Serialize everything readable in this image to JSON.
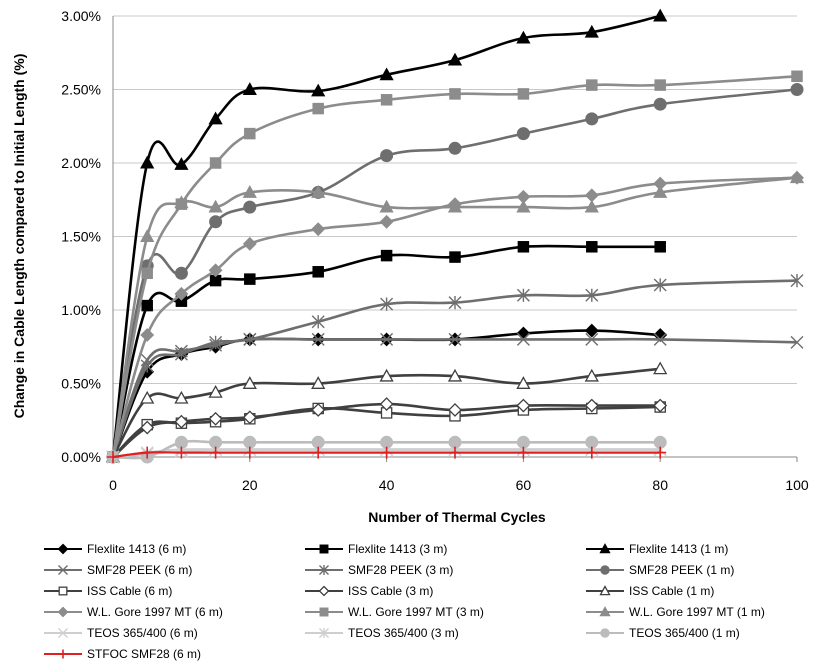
{
  "chart_data": {
    "type": "line",
    "title": "",
    "xlabel": "Number of Thermal Cycles",
    "ylabel": "Change in Cable Length compared to Initial Length (%)",
    "xlim": [
      0,
      100
    ],
    "ylim": [
      0,
      3.0
    ],
    "x_ticks": [
      "0",
      "20",
      "40",
      "60",
      "80",
      "100"
    ],
    "y_ticks": [
      "0.00%",
      "0.50%",
      "1.00%",
      "1.50%",
      "2.00%",
      "2.50%",
      "3.00%"
    ],
    "grid": "horizontal",
    "legend_position": "bottom",
    "series": [
      {
        "name": "Flexlite 1413 (6 m)",
        "color": "#000000",
        "marker": "diamond",
        "fill": true,
        "x": [
          0,
          5,
          10,
          15,
          20,
          30,
          40,
          50,
          60,
          70,
          80
        ],
        "y": [
          0,
          0.58,
          0.7,
          0.75,
          0.8,
          0.8,
          0.8,
          0.8,
          0.84,
          0.86,
          0.83
        ]
      },
      {
        "name": "Flexlite 1413 (3 m)",
        "color": "#000000",
        "marker": "square",
        "fill": true,
        "x": [
          0,
          5,
          10,
          15,
          20,
          30,
          40,
          50,
          60,
          70,
          80
        ],
        "y": [
          0,
          1.03,
          1.06,
          1.2,
          1.21,
          1.26,
          1.37,
          1.36,
          1.43,
          1.43,
          1.43
        ]
      },
      {
        "name": "Flexlite 1413 (1 m)",
        "color": "#000000",
        "marker": "triangle",
        "fill": true,
        "x": [
          0,
          5,
          10,
          15,
          20,
          30,
          40,
          50,
          60,
          70,
          80
        ],
        "y": [
          0,
          2.0,
          1.99,
          2.3,
          2.5,
          2.49,
          2.6,
          2.7,
          2.85,
          2.89,
          3.0
        ]
      },
      {
        "name": "SMF28 PEEK (6 m)",
        "color": "#6e6e6e",
        "marker": "x",
        "fill": false,
        "x": [
          0,
          5,
          10,
          15,
          20,
          30,
          40,
          50,
          60,
          70,
          80,
          100
        ],
        "y": [
          0,
          0.66,
          0.72,
          0.76,
          0.8,
          0.8,
          0.8,
          0.8,
          0.8,
          0.8,
          0.8,
          0.78
        ]
      },
      {
        "name": "SMF28 PEEK (3 m)",
        "color": "#6e6e6e",
        "marker": "asterisk",
        "fill": false,
        "x": [
          0,
          5,
          10,
          15,
          20,
          30,
          40,
          50,
          60,
          70,
          80,
          100
        ],
        "y": [
          0,
          0.62,
          0.7,
          0.78,
          0.8,
          0.92,
          1.04,
          1.05,
          1.1,
          1.1,
          1.17,
          1.2
        ]
      },
      {
        "name": "SMF28 PEEK (1 m)",
        "color": "#6e6e6e",
        "marker": "circle",
        "fill": true,
        "x": [
          0,
          5,
          10,
          15,
          20,
          30,
          40,
          50,
          60,
          70,
          80,
          100
        ],
        "y": [
          0,
          1.3,
          1.25,
          1.6,
          1.7,
          1.8,
          2.05,
          2.1,
          2.2,
          2.3,
          2.4,
          2.5
        ]
      },
      {
        "name": "ISS Cable (6 m)",
        "color": "#404040",
        "marker": "square",
        "fill": false,
        "x": [
          0,
          5,
          10,
          15,
          20,
          30,
          40,
          50,
          60,
          70,
          80
        ],
        "y": [
          0,
          0.22,
          0.23,
          0.24,
          0.26,
          0.33,
          0.3,
          0.28,
          0.32,
          0.33,
          0.34
        ]
      },
      {
        "name": "ISS Cable (3 m)",
        "color": "#404040",
        "marker": "diamond",
        "fill": false,
        "x": [
          0,
          5,
          10,
          15,
          20,
          30,
          40,
          50,
          60,
          70,
          80
        ],
        "y": [
          0,
          0.2,
          0.24,
          0.26,
          0.27,
          0.32,
          0.36,
          0.32,
          0.35,
          0.35,
          0.35
        ]
      },
      {
        "name": "ISS Cable (1 m)",
        "color": "#404040",
        "marker": "triangle",
        "fill": false,
        "x": [
          0,
          5,
          10,
          15,
          20,
          30,
          40,
          50,
          60,
          70,
          80
        ],
        "y": [
          0,
          0.4,
          0.4,
          0.44,
          0.5,
          0.5,
          0.55,
          0.55,
          0.5,
          0.55,
          0.6
        ]
      },
      {
        "name": "W.L. Gore 1997 MT (6 m)",
        "color": "#8c8c8c",
        "marker": "diamond",
        "fill": true,
        "x": [
          0,
          5,
          10,
          15,
          20,
          30,
          40,
          50,
          60,
          70,
          80,
          100
        ],
        "y": [
          0,
          0.83,
          1.11,
          1.27,
          1.45,
          1.55,
          1.6,
          1.72,
          1.77,
          1.78,
          1.86,
          1.9
        ]
      },
      {
        "name": "W.L. Gore 1997 MT (3 m)",
        "color": "#8c8c8c",
        "marker": "square",
        "fill": true,
        "x": [
          0,
          5,
          10,
          15,
          20,
          30,
          40,
          50,
          60,
          70,
          80,
          100
        ],
        "y": [
          0,
          1.25,
          1.72,
          2.0,
          2.2,
          2.37,
          2.43,
          2.47,
          2.47,
          2.53,
          2.53,
          2.59
        ]
      },
      {
        "name": "W.L. Gore 1997 MT (1 m)",
        "color": "#8c8c8c",
        "marker": "triangle",
        "fill": true,
        "x": [
          0,
          5,
          10,
          15,
          20,
          30,
          40,
          50,
          60,
          70,
          80,
          100
        ],
        "y": [
          0,
          1.5,
          1.73,
          1.7,
          1.8,
          1.8,
          1.7,
          1.7,
          1.7,
          1.7,
          1.8,
          1.9
        ]
      },
      {
        "name": "TEOS 365/400 (6 m)",
        "color": "#cfcfcf",
        "marker": "x",
        "fill": false,
        "x": [
          0,
          5,
          10,
          15,
          20,
          30,
          40,
          50,
          60,
          70,
          80
        ],
        "y": [
          0,
          0.03,
          0.05,
          0.05,
          0.05,
          0.05,
          0.05,
          0.05,
          0.05,
          0.05,
          0.05
        ]
      },
      {
        "name": "TEOS 365/400 (3 m)",
        "color": "#cfcfcf",
        "marker": "asterisk",
        "fill": false,
        "x": [
          0,
          5,
          10,
          15,
          20,
          30,
          40,
          50,
          60,
          70,
          80
        ],
        "y": [
          0,
          0.02,
          0.04,
          0.05,
          0.05,
          0.05,
          0.05,
          0.05,
          0.05,
          0.05,
          0.05
        ]
      },
      {
        "name": "TEOS 365/400 (1 m)",
        "color": "#bcbcbc",
        "marker": "circle",
        "fill": true,
        "x": [
          0,
          5,
          10,
          15,
          20,
          30,
          40,
          50,
          60,
          70,
          80
        ],
        "y": [
          0,
          0.0,
          0.1,
          0.1,
          0.1,
          0.1,
          0.1,
          0.1,
          0.1,
          0.1,
          0.1
        ]
      },
      {
        "name": "STFOC SMF28 (6 m)",
        "color": "#e02020",
        "marker": "plus",
        "fill": false,
        "x": [
          0,
          5,
          10,
          15,
          20,
          30,
          40,
          50,
          60,
          70,
          80
        ],
        "y": [
          0,
          0.03,
          0.03,
          0.03,
          0.03,
          0.03,
          0.03,
          0.03,
          0.03,
          0.03,
          0.03
        ]
      }
    ]
  }
}
